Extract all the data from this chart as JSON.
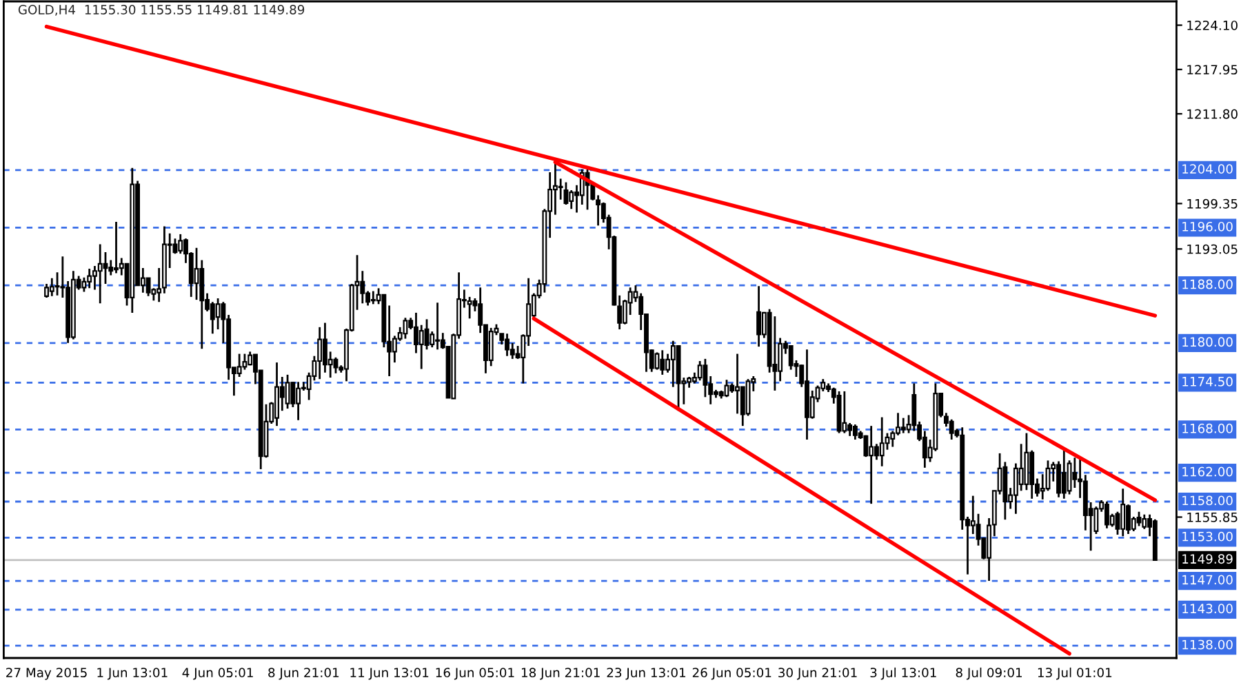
{
  "chart_data": {
    "type": "candlestick",
    "title": "GOLD,H4  1155.30 1155.55 1149.81 1149.89",
    "categories": [
      "27 May 2015",
      null,
      null,
      null,
      null,
      null,
      null,
      null,
      null,
      null,
      null,
      null,
      null,
      null,
      null,
      null,
      "1 Jun 13:01",
      null,
      null,
      null,
      null,
      null,
      null,
      null,
      null,
      null,
      null,
      null,
      null,
      null,
      null,
      null,
      "4 Jun 05:01",
      null,
      null,
      null,
      null,
      null,
      null,
      null,
      null,
      null,
      null,
      null,
      null,
      null,
      null,
      null,
      "8 Jun 21:01",
      null,
      null,
      null,
      null,
      null,
      null,
      null,
      null,
      null,
      null,
      null,
      null,
      null,
      null,
      null,
      "11 Jun 13:01",
      null,
      null,
      null,
      null,
      null,
      null,
      null,
      null,
      null,
      null,
      null,
      null,
      null,
      null,
      null,
      "16 Jun 05:01",
      null,
      null,
      null,
      null,
      null,
      null,
      null,
      null,
      null,
      null,
      null,
      null,
      null,
      null,
      null,
      "18 Jun 21:01",
      null,
      null,
      null,
      null,
      null,
      null,
      null,
      null,
      null,
      null,
      null,
      null,
      null,
      null,
      null,
      "23 Jun 13:01",
      null,
      null,
      null,
      null,
      null,
      null,
      null,
      null,
      null,
      null,
      null,
      null,
      null,
      null,
      null,
      "26 Jun 05:01",
      null,
      null,
      null,
      null,
      null,
      null,
      null,
      null,
      null,
      null,
      null,
      null,
      null,
      null,
      null,
      "30 Jun 21:01",
      null,
      null,
      null,
      null,
      null,
      null,
      null,
      null,
      null,
      null,
      null,
      null,
      null,
      null,
      null,
      "3 Jul 13:01",
      null,
      null,
      null,
      null,
      null,
      null,
      null,
      null,
      null,
      null,
      null,
      null,
      null,
      null,
      null,
      "8 Jul 09:01",
      null,
      null,
      null,
      null,
      null,
      null,
      null,
      null,
      null,
      null,
      null,
      null,
      null,
      null,
      null,
      "13 Jul 01:01",
      null,
      null,
      null,
      null,
      null,
      null,
      null,
      null,
      null,
      null,
      null,
      null,
      null,
      null,
      null
    ],
    "ohlc": [
      [
        1186.5,
        1188.2,
        1186.3,
        1187.7
      ],
      [
        1187.2,
        1189,
        1186.5,
        1187.8
      ],
      [
        1187.9,
        1189.8,
        1186.6,
        1187.8
      ],
      [
        1187.7,
        1192,
        1186.3,
        1187.8
      ],
      [
        1187.7,
        1188.6,
        1180,
        1180.8
      ],
      [
        1180.8,
        1190,
        1180.5,
        1188.8
      ],
      [
        1188.8,
        1189.3,
        1187.4,
        1187.7
      ],
      [
        1187.7,
        1189.1,
        1187.1,
        1188.5
      ],
      [
        1188.5,
        1190.3,
        1187.6,
        1189.3
      ],
      [
        1189.3,
        1190.7,
        1187.4,
        1190
      ],
      [
        1190,
        1193.7,
        1185.5,
        1191
      ],
      [
        1191,
        1192.6,
        1188.2,
        1190.4
      ],
      [
        1190.5,
        1191.5,
        1189.4,
        1190
      ],
      [
        1190.2,
        1196.8,
        1189.7,
        1190.4
      ],
      [
        1190.4,
        1191.8,
        1189.4,
        1191
      ],
      [
        1191,
        1191,
        1185.2,
        1186.3
      ],
      [
        1186.3,
        1204.3,
        1184.2,
        1202
      ],
      [
        1202,
        1202.5,
        1188,
        1188
      ],
      [
        1188,
        1190.4,
        1187,
        1189
      ],
      [
        1189,
        1189,
        1186.5,
        1187
      ],
      [
        1186.8,
        1187.6,
        1185.9,
        1187.4
      ],
      [
        1187,
        1190.4,
        1185.7,
        1187.5
      ],
      [
        1187.7,
        1196.2,
        1186.9,
        1193.7
      ],
      [
        1193.7,
        1195.2,
        1190.4,
        1193.6
      ],
      [
        1193.7,
        1194.5,
        1192.4,
        1192.6
      ],
      [
        1192.8,
        1195.1,
        1192.4,
        1194.2
      ],
      [
        1194.3,
        1194.5,
        1191.1,
        1192.4
      ],
      [
        1192.4,
        1192.6,
        1186.4,
        1188.3
      ],
      [
        1188.3,
        1193.2,
        1186,
        1190.3
      ],
      [
        1190.3,
        1191.5,
        1179.2,
        1185.9
      ],
      [
        1186,
        1186.9,
        1184.4,
        1184.7
      ],
      [
        1185.4,
        1185.7,
        1181.3,
        1183.3
      ],
      [
        1183.6,
        1186.2,
        1181.9,
        1185.4
      ],
      [
        1185.4,
        1185.7,
        1180,
        1183.3
      ],
      [
        1183.3,
        1183.9,
        1174.9,
        1176.6
      ],
      [
        1176.6,
        1176.6,
        1172.7,
        1175.8
      ],
      [
        1175.8,
        1178.5,
        1175.3,
        1176.7
      ],
      [
        1176.7,
        1178.5,
        1176.3,
        1177.4
      ],
      [
        1177,
        1178.8,
        1176.9,
        1178.3
      ],
      [
        1178.4,
        1178.4,
        1174.3,
        1176
      ],
      [
        1176.2,
        1176.2,
        1162.5,
        1164.3
      ],
      [
        1164.3,
        1171.5,
        1164.1,
        1169.1
      ],
      [
        1169.1,
        1171.8,
        1168.8,
        1171.6
      ],
      [
        1169.6,
        1177.3,
        1168.5,
        1173.9
      ],
      [
        1173.9,
        1175.3,
        1170.6,
        1172.5
      ],
      [
        1171.6,
        1175.6,
        1170.9,
        1174.5
      ],
      [
        1174.5,
        1174.6,
        1171.1,
        1171.6
      ],
      [
        1171.6,
        1174.6,
        1169.3,
        1173.7
      ],
      [
        1173.7,
        1174.6,
        1173.4,
        1173.8
      ],
      [
        1173.6,
        1175.9,
        1172.1,
        1175.4
      ],
      [
        1175.4,
        1178.2,
        1174.8,
        1177.5
      ],
      [
        1177.5,
        1182.2,
        1175,
        1180.5
      ],
      [
        1180.5,
        1182.8,
        1175.9,
        1177
      ],
      [
        1177,
        1178.8,
        1175.2,
        1177.7
      ],
      [
        1177.7,
        1178,
        1175.8,
        1176.6
      ],
      [
        1176.6,
        1176.9,
        1175.9,
        1176.3
      ],
      [
        1176.4,
        1182,
        1174.7,
        1181.8
      ],
      [
        1181.8,
        1188.2,
        1181.6,
        1188
      ],
      [
        1188,
        1192.2,
        1184.6,
        1188.5
      ],
      [
        1188.5,
        1190,
        1185.5,
        1186.9
      ],
      [
        1186.9,
        1187.2,
        1185.2,
        1185.7
      ],
      [
        1186,
        1187.2,
        1185.4,
        1185.9
      ],
      [
        1185.9,
        1187.6,
        1185.4,
        1186.7
      ],
      [
        1186.7,
        1186.7,
        1179.4,
        1180.2
      ],
      [
        1180.2,
        1185.2,
        1175.4,
        1178.8
      ],
      [
        1178.8,
        1181,
        1177.3,
        1180.6
      ],
      [
        1180.6,
        1182.2,
        1180.3,
        1181.4
      ],
      [
        1181.3,
        1183.5,
        1180.6,
        1183.1
      ],
      [
        1183.1,
        1183.5,
        1181.9,
        1182.2
      ],
      [
        1182.2,
        1184.2,
        1178.6,
        1179.8
      ],
      [
        1179.8,
        1182.5,
        1176.4,
        1181.7
      ],
      [
        1181.9,
        1183.3,
        1179.1,
        1179.7
      ],
      [
        1179.8,
        1181.6,
        1179.4,
        1181.2
      ],
      [
        1180.3,
        1185.6,
        1179.1,
        1180.4
      ],
      [
        1180.4,
        1181.4,
        1179.2,
        1179.4
      ],
      [
        1179.5,
        1179.5,
        1172.4,
        1172.4
      ],
      [
        1172.3,
        1181.3,
        1172.3,
        1181.1
      ],
      [
        1181.1,
        1189.8,
        1180.6,
        1186.1
      ],
      [
        1185.9,
        1187.4,
        1184.9,
        1186
      ],
      [
        1185.4,
        1186.4,
        1183.4,
        1185.8
      ],
      [
        1185.8,
        1186.2,
        1184.4,
        1185.2
      ],
      [
        1185.4,
        1187.7,
        1181.4,
        1182.5
      ],
      [
        1182.5,
        1182.5,
        1175.8,
        1177.6
      ],
      [
        1177.6,
        1182.1,
        1176.8,
        1181.6
      ],
      [
        1181.5,
        1182.6,
        1181.1,
        1182
      ],
      [
        1181.3,
        1181.3,
        1179.8,
        1180.4
      ],
      [
        1180.5,
        1181.3,
        1178.2,
        1179.1
      ],
      [
        1179.1,
        1180,
        1177.8,
        1178.4
      ],
      [
        1178.5,
        1179.6,
        1177.8,
        1178
      ],
      [
        1178,
        1181.2,
        1174.4,
        1181
      ],
      [
        1181,
        1189,
        1179.6,
        1185.4
      ],
      [
        1183.8,
        1186.9,
        1183.5,
        1186.6
      ],
      [
        1186.6,
        1188.8,
        1186.2,
        1188.2
      ],
      [
        1188.2,
        1198.6,
        1187,
        1198.3
      ],
      [
        1198.3,
        1203.7,
        1194.6,
        1201.3
      ],
      [
        1201.3,
        1205.4,
        1197.8,
        1201.8
      ],
      [
        1201.6,
        1202.8,
        1199.9,
        1201.7
      ],
      [
        1201.2,
        1202.3,
        1199.2,
        1199.4
      ],
      [
        1199.7,
        1201.2,
        1198.6,
        1200.9
      ],
      [
        1200.9,
        1201.9,
        1198.1,
        1200.5
      ],
      [
        1200.5,
        1204.1,
        1199.2,
        1203.6
      ],
      [
        1203.6,
        1204.1,
        1198.5,
        1201.9
      ],
      [
        1202,
        1202.2,
        1199.8,
        1200
      ],
      [
        1199.8,
        1200.5,
        1196.3,
        1199.2
      ],
      [
        1199.3,
        1199.5,
        1196.7,
        1197.3
      ],
      [
        1197.4,
        1197.8,
        1193,
        1194.7
      ],
      [
        1194.7,
        1194.9,
        1185.2,
        1185.3
      ],
      [
        1185.1,
        1186.6,
        1181.9,
        1182.8
      ],
      [
        1182.8,
        1186,
        1182.6,
        1185.8
      ],
      [
        1185.6,
        1187.7,
        1183.9,
        1187.1
      ],
      [
        1186.3,
        1188,
        1185.7,
        1187.1
      ],
      [
        1186.4,
        1186.9,
        1181.8,
        1184
      ],
      [
        1184,
        1184,
        1176,
        1178.7
      ],
      [
        1179,
        1179.1,
        1176,
        1176.5
      ],
      [
        1176.5,
        1178.7,
        1176.3,
        1178.5
      ],
      [
        1177.7,
        1179,
        1175.6,
        1176.3
      ],
      [
        1176.3,
        1178.5,
        1175.9,
        1177.7
      ],
      [
        1177.7,
        1180.3,
        1173.9,
        1179.6
      ],
      [
        1179.6,
        1179.6,
        1170.6,
        1174.4
      ],
      [
        1174.4,
        1175.2,
        1171.5,
        1174.7
      ],
      [
        1174.6,
        1175.3,
        1173.8,
        1175.1
      ],
      [
        1174.7,
        1175.9,
        1174.4,
        1175.2
      ],
      [
        1175.2,
        1177.5,
        1174.8,
        1176.9
      ],
      [
        1176.9,
        1177.8,
        1172.5,
        1174.2
      ],
      [
        1174.3,
        1175.4,
        1171.5,
        1172.9
      ],
      [
        1173.2,
        1173.5,
        1172.4,
        1172.9
      ],
      [
        1173.2,
        1173.4,
        1172.3,
        1172.7
      ],
      [
        1172.7,
        1174.9,
        1172.5,
        1174.1
      ],
      [
        1174.1,
        1174.4,
        1173.1,
        1173.4
      ],
      [
        1173.4,
        1178.5,
        1170.2,
        1173.9
      ],
      [
        1173.9,
        1173.9,
        1168.5,
        1170.1
      ],
      [
        1170.2,
        1175,
        1169.9,
        1174.7
      ],
      [
        1174.6,
        1175.4,
        1173.3,
        1175
      ],
      [
        1184.3,
        1187.9,
        1179.5,
        1181.2
      ],
      [
        1181.2,
        1184.3,
        1180.7,
        1184.2
      ],
      [
        1184.2,
        1184.7,
        1175.9,
        1176.8
      ],
      [
        1177,
        1183.7,
        1173.4,
        1176.1
      ],
      [
        1176.1,
        1180.7,
        1174.7,
        1179.9
      ],
      [
        1179.9,
        1180.3,
        1178.5,
        1179.3
      ],
      [
        1179.6,
        1179.6,
        1176.3,
        1176.9
      ],
      [
        1177.1,
        1177.6,
        1175.3,
        1176.8
      ],
      [
        1176.9,
        1177,
        1173.9,
        1174.4
      ],
      [
        1174.7,
        1179.1,
        1166.6,
        1169.7
      ],
      [
        1169.7,
        1173.4,
        1169.5,
        1172.5
      ],
      [
        1172.3,
        1174.1,
        1171.8,
        1173.8
      ],
      [
        1173.7,
        1175,
        1173.3,
        1174.5
      ],
      [
        1174,
        1174.4,
        1173.2,
        1173.6
      ],
      [
        1173.6,
        1173.8,
        1171.6,
        1172.5
      ],
      [
        1172.7,
        1173.3,
        1167.5,
        1167.8
      ],
      [
        1167.8,
        1173.3,
        1167.5,
        1168.9
      ],
      [
        1168.6,
        1168.9,
        1167.1,
        1167.9
      ],
      [
        1168.4,
        1168.7,
        1166.6,
        1167.2
      ],
      [
        1167.5,
        1167.8,
        1166.7,
        1166.9
      ],
      [
        1167.1,
        1167.2,
        1164.2,
        1164.4
      ],
      [
        1164.4,
        1168.5,
        1157.7,
        1165.6
      ],
      [
        1165.6,
        1166,
        1163.8,
        1164.4
      ],
      [
        1164.4,
        1169.7,
        1162.9,
        1166.1
      ],
      [
        1166.1,
        1167.5,
        1165.2,
        1166.9
      ],
      [
        1166.7,
        1167.8,
        1165.6,
        1167.5
      ],
      [
        1167.5,
        1170.3,
        1167.2,
        1168.3
      ],
      [
        1168.3,
        1169.6,
        1167.5,
        1168
      ],
      [
        1168,
        1170,
        1167.5,
        1168.7
      ],
      [
        1172.8,
        1174.4,
        1167.8,
        1168.6
      ],
      [
        1168.6,
        1169.1,
        1166.4,
        1166.7
      ],
      [
        1166.9,
        1167.8,
        1162.7,
        1164.1
      ],
      [
        1164.1,
        1166.6,
        1163.5,
        1165.5
      ],
      [
        1165.3,
        1174.4,
        1165,
        1173
      ],
      [
        1173,
        1173.1,
        1169.7,
        1170
      ],
      [
        1169.8,
        1170.3,
        1168.4,
        1168.9
      ],
      [
        1169.1,
        1169.4,
        1166.6,
        1167.5
      ],
      [
        1167.8,
        1168.1,
        1166.9,
        1167.2
      ],
      [
        1167.2,
        1168.3,
        1154.1,
        1155.5
      ],
      [
        1155.5,
        1155.9,
        1147.9,
        1154.7
      ],
      [
        1154.7,
        1158.8,
        1153.5,
        1155.3
      ],
      [
        1154.8,
        1156.3,
        1151.9,
        1152.8
      ],
      [
        1152.9,
        1153,
        1150,
        1150.2
      ],
      [
        1150.2,
        1155.7,
        1147,
        1154.7
      ],
      [
        1154.8,
        1159.5,
        1153.2,
        1159.5
      ],
      [
        1159.5,
        1164.7,
        1159,
        1162.6
      ],
      [
        1162.8,
        1163.5,
        1155.5,
        1158
      ],
      [
        1158,
        1159.9,
        1157,
        1158.9
      ],
      [
        1158.9,
        1163.3,
        1156.3,
        1162.6
      ],
      [
        1160.4,
        1166,
        1159.5,
        1162.6
      ],
      [
        1160.4,
        1167.5,
        1159.6,
        1164.8
      ],
      [
        1164.8,
        1165.1,
        1158.4,
        1160.4
      ],
      [
        1160.4,
        1161.2,
        1158.7,
        1159.2
      ],
      [
        1159.5,
        1161.8,
        1158.3,
        1159.8
      ],
      [
        1159.8,
        1163.7,
        1159.5,
        1162.6
      ],
      [
        1162.6,
        1163.5,
        1160.8,
        1163.1
      ],
      [
        1163.1,
        1163.6,
        1158.6,
        1159.2
      ],
      [
        1162,
        1165.4,
        1158.4,
        1159.2
      ],
      [
        1159.5,
        1163.7,
        1159,
        1163.3
      ],
      [
        1162,
        1164.1,
        1159.9,
        1161.1
      ],
      [
        1161.1,
        1164.1,
        1158.5,
        1160.8
      ],
      [
        1160.8,
        1161.7,
        1154,
        1156.1
      ],
      [
        1157,
        1157.9,
        1151.2,
        1156.1
      ],
      [
        1153.9,
        1157.3,
        1153.5,
        1157
      ],
      [
        1157,
        1158.2,
        1156.6,
        1157.9
      ],
      [
        1157.6,
        1158,
        1154.3,
        1154.8
      ],
      [
        1154.8,
        1156.3,
        1154.5,
        1156
      ],
      [
        1156.3,
        1156.6,
        1153.4,
        1154.2
      ],
      [
        1154.2,
        1159.8,
        1153.2,
        1157.6
      ],
      [
        1157.4,
        1157.6,
        1153.5,
        1154.1
      ],
      [
        1154.2,
        1155.9,
        1153.9,
        1155.6
      ],
      [
        1155.8,
        1156.6,
        1154.6,
        1155.1
      ],
      [
        1154.5,
        1156.2,
        1154.2,
        1155.6
      ],
      [
        1155.6,
        1156.2,
        1153.2,
        1154.5
      ],
      [
        1155.3,
        1155.55,
        1149.81,
        1149.89
      ]
    ],
    "series": [
      {
        "type": "line",
        "color": "#ff0000",
        "values": [
          1223.9,
          null,
          null,
          null,
          null,
          null,
          null,
          null,
          null,
          null,
          null,
          null,
          null,
          null,
          null,
          null,
          null,
          null,
          null,
          null,
          null,
          null,
          null,
          null,
          null,
          null,
          null,
          null,
          null,
          null,
          null,
          null,
          null,
          null,
          null,
          null,
          null,
          null,
          null,
          null,
          null,
          null,
          null,
          null,
          null,
          null,
          null,
          null,
          null,
          null,
          null,
          null,
          null,
          null,
          null,
          null,
          null,
          null,
          null,
          null,
          null,
          null,
          null,
          null,
          null,
          null,
          null,
          null,
          null,
          null,
          null,
          null,
          null,
          null,
          null,
          null,
          null,
          null,
          null,
          null,
          null,
          null,
          null,
          null,
          null,
          null,
          null,
          null,
          null,
          null,
          null,
          null,
          null,
          null,
          null,
          null,
          null,
          null,
          null,
          null,
          null,
          null,
          null,
          null,
          null,
          null,
          null,
          null,
          null,
          null,
          null,
          null,
          null,
          null,
          null,
          null,
          null,
          null,
          null,
          null,
          null,
          null,
          null,
          null,
          null,
          null,
          null,
          null,
          null,
          null,
          null,
          null,
          null,
          null,
          null,
          null,
          null,
          null,
          null,
          null,
          null,
          null,
          null,
          null,
          null,
          null,
          null,
          null,
          null,
          null,
          null,
          null,
          null,
          null,
          null,
          null,
          null,
          null,
          null,
          null,
          null,
          null,
          null,
          null,
          null,
          null,
          null,
          null,
          null,
          null,
          null,
          null,
          null,
          null,
          null,
          null,
          null,
          null,
          null,
          null,
          null,
          null,
          null,
          null,
          null,
          null,
          null,
          null,
          null,
          null,
          null,
          null,
          null,
          null,
          null,
          null,
          null,
          null,
          null,
          null,
          null,
          null,
          null,
          null,
          null,
          null,
          null,
          1183.8
        ]
      },
      {
        "type": "line",
        "color": "#ff0000",
        "values": [
          null,
          null,
          null,
          null,
          null,
          null,
          null,
          null,
          null,
          null,
          null,
          null,
          null,
          null,
          null,
          null,
          null,
          null,
          null,
          null,
          null,
          null,
          null,
          null,
          null,
          null,
          null,
          null,
          null,
          null,
          null,
          null,
          null,
          null,
          null,
          null,
          null,
          null,
          null,
          null,
          null,
          null,
          null,
          null,
          null,
          null,
          null,
          null,
          null,
          null,
          null,
          null,
          null,
          null,
          null,
          null,
          null,
          null,
          null,
          null,
          null,
          null,
          null,
          null,
          null,
          null,
          null,
          null,
          null,
          null,
          null,
          null,
          null,
          null,
          null,
          null,
          null,
          null,
          null,
          null,
          null,
          null,
          null,
          null,
          null,
          null,
          null,
          null,
          null,
          null,
          null,
          null,
          null,
          null,
          null,
          1205.1,
          null,
          null,
          null,
          null,
          null,
          null,
          null,
          null,
          null,
          null,
          null,
          null,
          null,
          null,
          null,
          null,
          null,
          null,
          null,
          null,
          null,
          null,
          null,
          null,
          null,
          null,
          null,
          null,
          null,
          null,
          null,
          null,
          null,
          null,
          null,
          null,
          null,
          null,
          null,
          null,
          null,
          null,
          null,
          null,
          null,
          null,
          null,
          null,
          null,
          null,
          null,
          null,
          null,
          null,
          null,
          null,
          null,
          null,
          null,
          null,
          null,
          null,
          null,
          null,
          null,
          null,
          null,
          null,
          null,
          null,
          null,
          null,
          null,
          null,
          null,
          null,
          null,
          null,
          null,
          null,
          null,
          null,
          null,
          null,
          null,
          null,
          null,
          null,
          null,
          null,
          null,
          null,
          null,
          null,
          null,
          null,
          null,
          null,
          null,
          null,
          null,
          null,
          null,
          null,
          null,
          null,
          null,
          null,
          null,
          null,
          null,
          1158.2
        ]
      },
      {
        "type": "line",
        "color": "#ff0000",
        "values": [
          null,
          null,
          null,
          null,
          null,
          null,
          null,
          null,
          null,
          null,
          null,
          null,
          null,
          null,
          null,
          null,
          null,
          null,
          null,
          null,
          null,
          null,
          null,
          null,
          null,
          null,
          null,
          null,
          null,
          null,
          null,
          null,
          null,
          null,
          null,
          null,
          null,
          null,
          null,
          null,
          null,
          null,
          null,
          null,
          null,
          null,
          null,
          null,
          null,
          null,
          null,
          null,
          null,
          null,
          null,
          null,
          null,
          null,
          null,
          null,
          null,
          null,
          null,
          null,
          null,
          null,
          null,
          null,
          null,
          null,
          null,
          null,
          null,
          null,
          null,
          null,
          null,
          null,
          null,
          null,
          null,
          null,
          null,
          null,
          null,
          null,
          null,
          null,
          null,
          null,
          null,
          1183.4,
          null,
          null,
          null,
          null,
          null,
          null,
          null,
          null,
          null,
          null,
          null,
          null,
          null,
          null,
          null,
          null,
          null,
          null,
          null,
          null,
          null,
          null,
          null,
          null,
          null,
          null,
          null,
          null,
          null,
          null,
          null,
          null,
          null,
          null,
          null,
          null,
          null,
          null,
          null,
          null,
          null,
          null,
          null,
          null,
          null,
          null,
          null,
          null,
          null,
          null,
          null,
          null,
          null,
          null,
          null,
          null,
          null,
          null,
          null,
          null,
          null,
          null,
          null,
          null,
          null,
          null,
          null,
          null,
          null,
          null,
          null,
          null,
          null,
          null,
          null,
          null,
          null,
          null,
          null,
          null,
          null,
          null,
          null,
          null,
          null,
          null,
          null,
          null,
          null,
          null,
          null,
          null,
          null,
          null,
          null,
          null,
          null,
          null,
          null,
          1136.9,
          null,
          null,
          null,
          null,
          null,
          null,
          null,
          null,
          null,
          null,
          null,
          null,
          null,
          null,
          null,
          null
        ]
      }
    ],
    "ylim": [
      1136.3,
      1227.4
    ],
    "yticks": [
      {
        "value": 1224.1,
        "label": "1224.10"
      },
      {
        "value": 1217.95,
        "label": "1217.95"
      },
      {
        "value": 1211.8,
        "label": "1211.80"
      },
      {
        "value": 1199.35,
        "label": "1199.35"
      },
      {
        "value": 1193.05,
        "label": "1193.05"
      },
      {
        "value": 1155.85,
        "label": "1155.85"
      }
    ],
    "ref_lines": [
      {
        "axis": "y",
        "value": 1204,
        "label": "1204.00",
        "color": "#3a6ee8",
        "line_style": "dashed"
      },
      {
        "axis": "y",
        "value": 1196,
        "label": "1196.00",
        "color": "#3a6ee8",
        "line_style": "dashed"
      },
      {
        "axis": "y",
        "value": 1188,
        "label": "1188.00",
        "color": "#3a6ee8",
        "line_style": "dashed"
      },
      {
        "axis": "y",
        "value": 1180,
        "label": "1180.00",
        "color": "#3a6ee8",
        "line_style": "dashed"
      },
      {
        "axis": "y",
        "value": 1174.5,
        "label": "1174.50",
        "color": "#3a6ee8",
        "line_style": "dashed"
      },
      {
        "axis": "y",
        "value": 1168,
        "label": "1168.00",
        "color": "#3a6ee8",
        "line_style": "dashed"
      },
      {
        "axis": "y",
        "value": 1162,
        "label": "1162.00",
        "color": "#3a6ee8",
        "line_style": "dashed"
      },
      {
        "axis": "y",
        "value": 1158,
        "label": "1158.00",
        "color": "#3a6ee8",
        "line_style": "dashed"
      },
      {
        "axis": "y",
        "value": 1153,
        "label": "1153.00",
        "color": "#3a6ee8",
        "line_style": "dashed"
      },
      {
        "axis": "y",
        "value": 1149.89,
        "label": "1149.89",
        "color": "#c0c0c0",
        "line_style": "solid"
      },
      {
        "axis": "y",
        "value": 1147,
        "label": "1147.00",
        "color": "#3a6ee8",
        "line_style": "dashed"
      },
      {
        "axis": "y",
        "value": 1143,
        "label": "1143.00",
        "color": "#3a6ee8",
        "line_style": "dashed"
      },
      {
        "axis": "y",
        "value": 1138,
        "label": "1138.00",
        "color": "#3a6ee8",
        "line_style": "dashed"
      }
    ]
  }
}
